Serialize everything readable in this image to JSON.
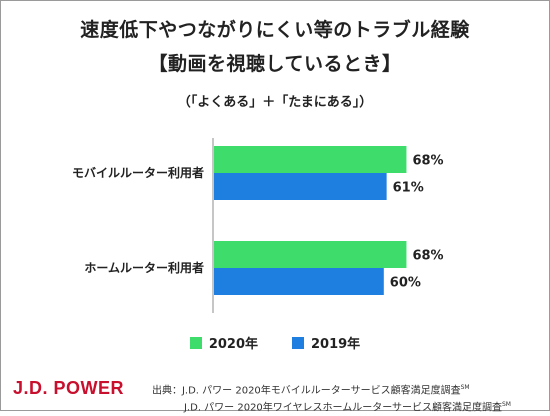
{
  "title_line1": "速度低下やつながりにくい等のトラブル経験",
  "title_line2": "【動画を視聴しているとき】",
  "subtitle": "（「よくある」＋「たまにある」）",
  "logo": "J.D. POWER",
  "source": {
    "line1": "出典：J.D. パワー 2020年モバイルルーターサービス顧客満足度調査",
    "line2": "J.D. パワー 2020年ワイヤレスホームルーターサービス顧客満足度調査",
    "mark": "SM"
  },
  "colors": {
    "series_2020": "#3ddc6b",
    "series_2019": "#1f7fe0",
    "logo": "#c8102e"
  },
  "chart_data": {
    "type": "bar",
    "orientation": "horizontal",
    "categories": [
      "モバイルルーター利用者",
      "ホームルーター利用者"
    ],
    "series": [
      {
        "name": "2020年",
        "values": [
          68,
          68
        ],
        "labels": [
          "68%",
          "68%"
        ]
      },
      {
        "name": "2019年",
        "values": [
          61,
          60
        ],
        "labels": [
          "61%",
          "60%"
        ]
      }
    ],
    "xlim": [
      0,
      100
    ],
    "grid": false,
    "legend": "bottom"
  }
}
